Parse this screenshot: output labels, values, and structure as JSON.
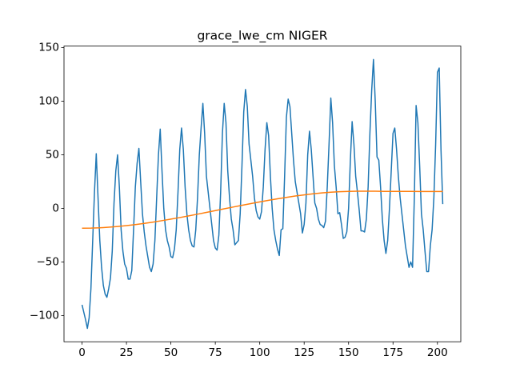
{
  "chart_data": {
    "type": "line",
    "title": "grace_lwe_cm NIGER",
    "xlim": [
      -10.15,
      213.15
    ],
    "xticks": [
      0,
      25,
      50,
      75,
      100,
      125,
      150,
      175,
      200
    ],
    "ylim": [
      -124.5,
      151.5
    ],
    "yticks": [
      {
        "value": -100,
        "label": "−100"
      },
      {
        "value": -50,
        "label": "−50"
      },
      0,
      50,
      100,
      150
    ],
    "series": [
      {
        "color": "#1f77b4",
        "x": [
          0,
          1,
          2,
          3,
          4,
          5,
          6,
          7,
          8,
          9,
          10,
          11,
          12,
          13,
          14,
          15,
          16,
          17,
          18,
          19,
          20,
          21,
          22,
          23,
          24,
          25,
          26,
          27,
          28,
          29,
          30,
          31,
          32,
          33,
          34,
          35,
          36,
          37,
          38,
          39,
          40,
          41,
          42,
          43,
          44,
          45,
          46,
          47,
          48,
          49,
          50,
          51,
          52,
          53,
          54,
          55,
          56,
          57,
          58,
          59,
          60,
          61,
          62,
          63,
          64,
          65,
          66,
          67,
          68,
          69,
          70,
          71,
          72,
          73,
          74,
          75,
          76,
          77,
          78,
          79,
          80,
          81,
          82,
          83,
          84,
          85,
          86,
          87,
          88,
          89,
          90,
          91,
          92,
          93,
          94,
          95,
          96,
          97,
          98,
          99,
          100,
          101,
          102,
          103,
          104,
          105,
          106,
          107,
          108,
          109,
          110,
          111,
          112,
          113,
          114,
          115,
          116,
          117,
          118,
          119,
          120,
          121,
          122,
          123,
          124,
          125,
          126,
          127,
          128,
          129,
          130,
          131,
          132,
          133,
          134,
          135,
          136,
          137,
          138,
          139,
          140,
          141,
          142,
          143,
          144,
          145,
          146,
          147,
          148,
          149,
          150,
          151,
          152,
          153,
          154,
          155,
          156,
          157,
          158,
          159,
          160,
          161,
          162,
          163,
          164,
          165,
          166,
          167,
          168,
          169,
          170,
          171,
          172,
          173,
          174,
          175,
          176,
          177,
          178,
          179,
          180,
          181,
          182,
          183,
          184,
          185,
          186,
          187,
          188,
          189,
          190,
          191,
          192,
          193,
          194,
          195,
          196,
          197,
          198,
          199,
          200,
          201,
          202,
          203
        ],
        "values": [
          -90,
          -97,
          -104,
          -112,
          -102,
          -75,
          -30,
          15,
          51,
          10,
          -30,
          -55,
          -72,
          -80,
          -83,
          -75,
          -65,
          -40,
          5,
          35,
          50,
          20,
          -20,
          -40,
          -52,
          -56,
          -66,
          -66,
          -58,
          -20,
          20,
          42,
          56,
          25,
          -5,
          -22,
          -35,
          -45,
          -55,
          -59,
          -52,
          -30,
          10,
          50,
          74,
          35,
          0,
          -20,
          -30,
          -36,
          -45,
          -46,
          -38,
          -20,
          15,
          55,
          75,
          55,
          20,
          -5,
          -20,
          -30,
          -35,
          -36,
          -20,
          10,
          50,
          75,
          98,
          70,
          30,
          15,
          0,
          -15,
          -30,
          -37,
          -39,
          -25,
          15,
          70,
          98,
          80,
          35,
          10,
          -10,
          -20,
          -34,
          -32,
          -30,
          -5,
          40,
          90,
          111,
          95,
          60,
          45,
          30,
          10,
          -2,
          -8,
          -10,
          -3,
          20,
          55,
          80,
          68,
          30,
          0,
          -20,
          -30,
          -38,
          -44,
          -20,
          -19,
          30,
          85,
          102,
          95,
          70,
          45,
          25,
          15,
          5,
          -5,
          -23,
          -15,
          5,
          50,
          72,
          55,
          30,
          5,
          0,
          -10,
          -15,
          -16,
          -18,
          -12,
          20,
          60,
          103,
          80,
          40,
          20,
          -5,
          -4,
          -15,
          -28,
          -27,
          -22,
          0,
          45,
          81,
          60,
          30,
          15,
          -2,
          -21,
          -21,
          -22,
          -10,
          20,
          70,
          110,
          139,
          100,
          48,
          45,
          20,
          -10,
          -30,
          -42,
          -30,
          0,
          35,
          70,
          75,
          55,
          30,
          10,
          -5,
          -20,
          -35,
          -45,
          -55,
          -50,
          -55,
          10,
          96,
          80,
          40,
          -5,
          -20,
          -40,
          -59,
          -59,
          -35,
          -20,
          10,
          60,
          127,
          131,
          55,
          4
        ]
      },
      {
        "color": "#ff7f0e",
        "x": [
          0,
          5,
          10,
          15,
          20,
          25,
          30,
          35,
          40,
          45,
          50,
          55,
          60,
          65,
          70,
          75,
          80,
          85,
          90,
          95,
          100,
          105,
          110,
          115,
          120,
          125,
          130,
          135,
          140,
          145,
          150,
          155,
          160,
          165,
          170,
          175,
          180,
          185,
          190,
          195,
          200,
          203
        ],
        "values": [
          -18.5,
          -18.39,
          -18.09,
          -17.59,
          -16.92,
          -16.1,
          -15.12,
          -14.0,
          -12.79,
          -11.46,
          -10.04,
          -8.55,
          -7.0,
          -5.39,
          -3.74,
          -2.08,
          -0.41,
          1.24,
          2.89,
          4.49,
          6.05,
          7.54,
          8.96,
          10.29,
          11.52,
          12.62,
          13.6,
          14.42,
          15.09,
          15.59,
          15.9,
          16.0,
          16.0,
          16.0,
          15.9,
          15.9,
          15.9,
          15.9,
          15.8,
          15.8,
          15.8,
          15.8
        ]
      }
    ]
  }
}
